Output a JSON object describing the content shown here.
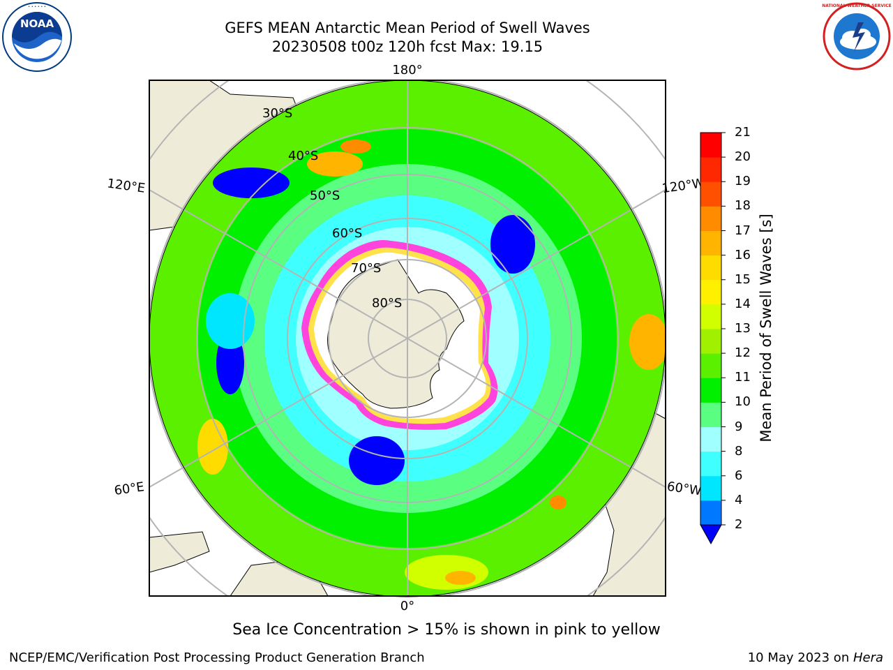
{
  "title": {
    "line1": "GEFS MEAN Antarctic Mean Period of Swell Waves",
    "line2": "20230508 t00z 120h fcst   Max: 19.15"
  },
  "map": {
    "projection": "south-polar-stereographic",
    "lon_labels": {
      "top": "180°",
      "left_upper": "120°E",
      "right_upper": "120°W",
      "left_lower": "60°E",
      "right_lower": "60°W",
      "bottom": "0°"
    },
    "lat_labels": [
      "30°S",
      "40°S",
      "50°S",
      "60°S",
      "70°S",
      "80°S"
    ],
    "colors": {
      "land": "#EEECD9",
      "ocean_mask": "#ffffff",
      "grid": "#B4B4B4",
      "sea_ice_low": "#FF44DD",
      "sea_ice_high": "#FFE14A"
    }
  },
  "colorbar": {
    "label": "Mean Period of Swell Waves [s]",
    "ticks": [
      "2",
      "4",
      "6",
      "8",
      "9",
      "10",
      "11",
      "12",
      "13",
      "14",
      "15",
      "16",
      "17",
      "18",
      "19",
      "20",
      "21"
    ],
    "colors": [
      "#0000FF",
      "#0078FF",
      "#00E6FF",
      "#40FFFF",
      "#A0FFFF",
      "#5AFF82",
      "#00F000",
      "#5AF000",
      "#A0F000",
      "#D2FF00",
      "#FFF000",
      "#FFDC00",
      "#FFB400",
      "#FF8C00",
      "#FF5000",
      "#FF2800",
      "#FF0000"
    ],
    "extend_color": "#0000FF"
  },
  "caption": "Sea Ice Concentration > 15% is shown in pink to yellow",
  "footer": {
    "left": "NCEP/EMC/Verification Post Processing Product Generation Branch",
    "right_text": "10 May 2023 on ",
    "right_host": "Hera"
  },
  "logos": {
    "left": "NOAA",
    "right": "NATIONAL WEATHER SERVICE"
  }
}
